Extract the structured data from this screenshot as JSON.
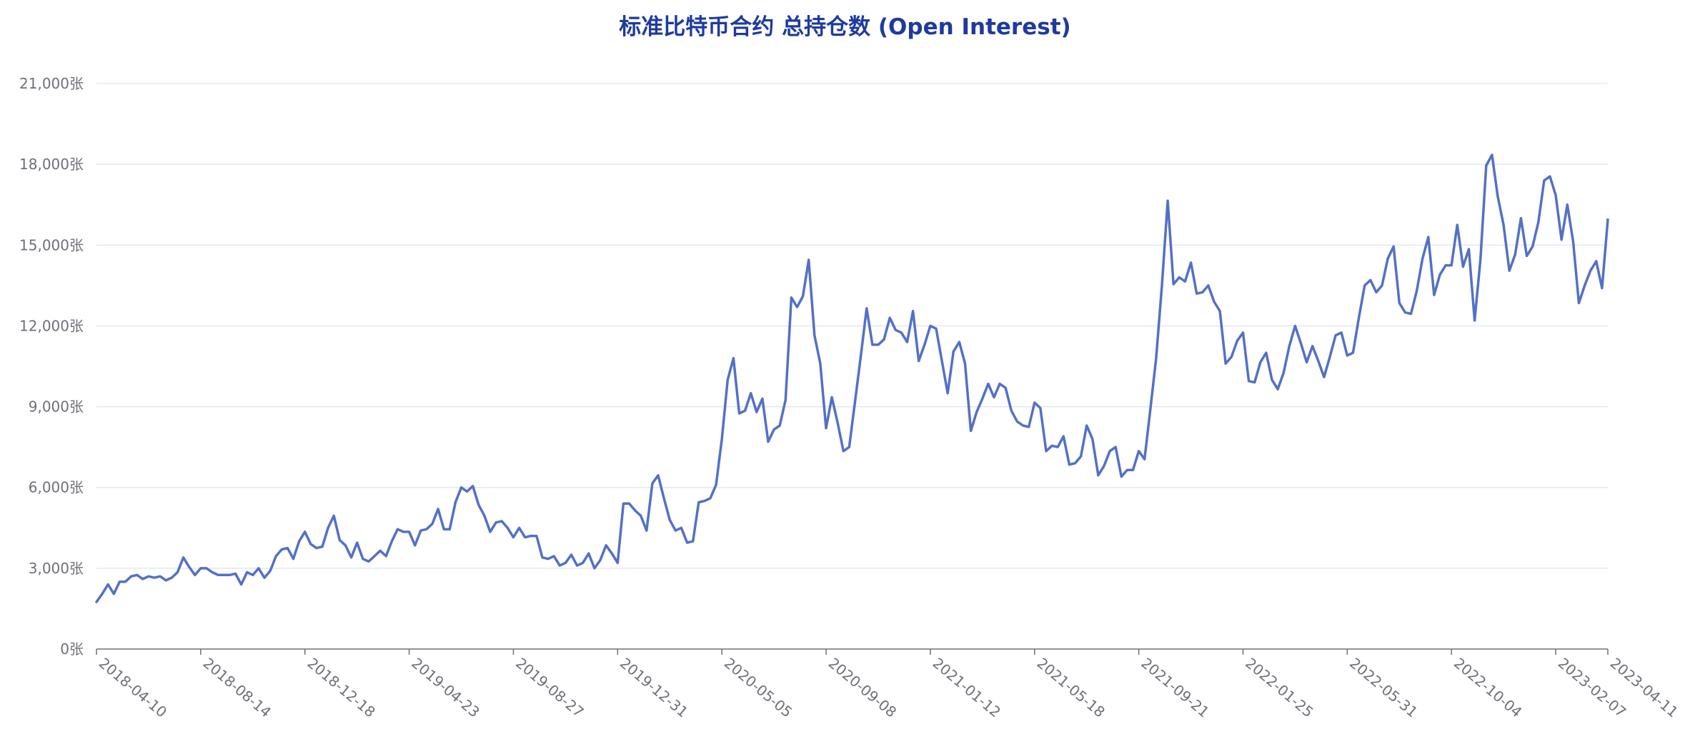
{
  "chart_data": {
    "type": "line",
    "title": "标准比特币合约 总持仓数 (Open Interest)",
    "xlabel": "",
    "ylabel": "",
    "y_unit": "张",
    "ylim": [
      0,
      21000
    ],
    "y_ticks": [
      0,
      3000,
      6000,
      9000,
      12000,
      15000,
      18000,
      21000
    ],
    "y_tick_labels": [
      "0张",
      "3,000张",
      "6,000张",
      "9,000张",
      "12,000张",
      "15,000张",
      "18,000张",
      "21,000张"
    ],
    "x_tick_labels": [
      "2018-04-10",
      "2018-08-14",
      "2018-12-18",
      "2019-04-23",
      "2019-08-27",
      "2019-12-31",
      "2020-05-05",
      "2020-09-08",
      "2021-01-12",
      "2021-05-18",
      "2021-09-21",
      "2022-01-25",
      "2022-05-31",
      "2022-10-04",
      "2023-02-07",
      "2023-04-11"
    ],
    "x_start": "2018-04-10",
    "x_end": "2023-04-11",
    "x_interval": "weekly",
    "grid": true,
    "legend": "none",
    "series": [
      {
        "color": "#5470c6",
        "values": [
          1750,
          2050,
          2400,
          2050,
          2500,
          2500,
          2700,
          2750,
          2600,
          2700,
          2650,
          2700,
          2550,
          2650,
          2850,
          3400,
          3050,
          2750,
          3000,
          3000,
          2850,
          2750,
          2750,
          2750,
          2800,
          2400,
          2850,
          2750,
          3000,
          2650,
          2900,
          3450,
          3700,
          3750,
          3350,
          4000,
          4350,
          3900,
          3750,
          3800,
          4500,
          4950,
          4050,
          3850,
          3400,
          3950,
          3350,
          3250,
          3450,
          3650,
          3450,
          4000,
          4450,
          4350,
          4350,
          3850,
          4400,
          4450,
          4650,
          5200,
          4450,
          4450,
          5450,
          6000,
          5850,
          6050,
          5350,
          4950,
          4350,
          4700,
          4750,
          4500,
          4150,
          4500,
          4150,
          4200,
          4200,
          3400,
          3350,
          3450,
          3100,
          3200,
          3500,
          3100,
          3200,
          3550,
          3000,
          3300,
          3850,
          3550,
          3200,
          5400,
          5400,
          5150,
          4950,
          4400,
          6150,
          6450,
          5600,
          4800,
          4400,
          4500,
          3950,
          4000,
          5450,
          5500,
          5600,
          6100,
          7800,
          10000,
          10800,
          8750,
          8850,
          9500,
          8800,
          9300,
          7700,
          8150,
          8300,
          9250,
          13050,
          12700,
          13100,
          14450,
          11650,
          10600,
          8200,
          9350,
          8400,
          7350,
          7500,
          9200,
          10900,
          12650,
          11300,
          11300,
          11500,
          12300,
          11850,
          11750,
          11400,
          12550,
          10700,
          11300,
          12000,
          11900,
          10700,
          9500,
          11050,
          11400,
          10600,
          8100,
          8800,
          9300,
          9850,
          9350,
          9850,
          9700,
          8850,
          8450,
          8300,
          8250,
          9150,
          8950,
          7350,
          7550,
          7500,
          7900,
          6850,
          6900,
          7150,
          8300,
          7800,
          6450,
          6800,
          7350,
          7500,
          6400,
          6650,
          6650,
          7350,
          7050,
          8900,
          10800,
          13500,
          16650,
          13550,
          13800,
          13650,
          14350,
          13200,
          13250,
          13500,
          12900,
          12550,
          10600,
          10850,
          11450,
          11750,
          9950,
          9900,
          10650,
          11000,
          10000,
          9650,
          10250,
          11250,
          12000,
          11350,
          10650,
          11250,
          10700,
          10100,
          10850,
          11650,
          11750,
          10900,
          11000,
          12300,
          13500,
          13700,
          13250,
          13500,
          14500,
          14950,
          12850,
          12500,
          12450,
          13300,
          14500,
          15300,
          13150,
          13900,
          14250,
          14250,
          15750,
          14200,
          14850,
          12200,
          14450,
          17950,
          18350,
          16800,
          15750,
          14050,
          14650,
          16000,
          14600,
          14950,
          15850,
          17400,
          17550,
          16850,
          15200,
          16500,
          15150,
          12850,
          13500,
          14050,
          14400,
          13400,
          15950
        ]
      }
    ]
  }
}
